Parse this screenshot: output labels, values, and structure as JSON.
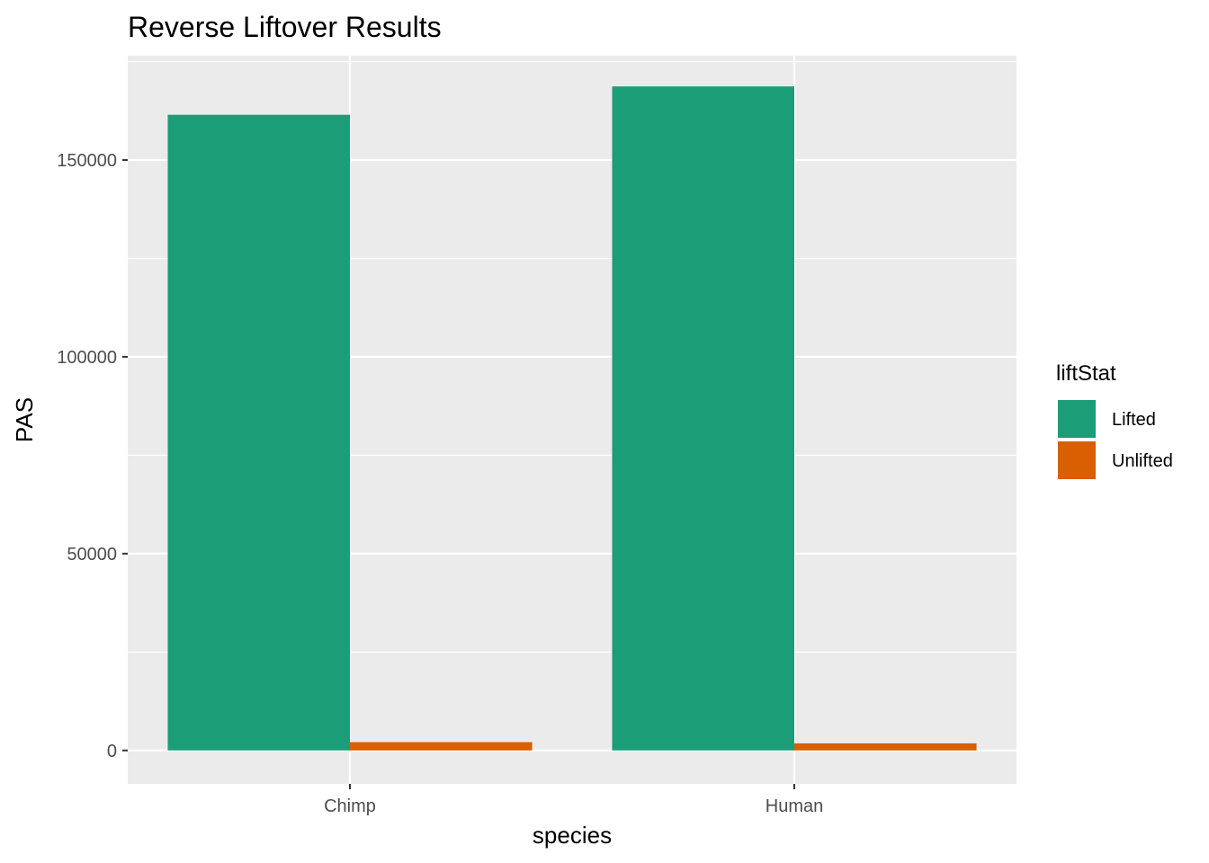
{
  "chart_data": {
    "type": "bar",
    "title": "Reverse Liftover Results",
    "xlabel": "species",
    "ylabel": "PAS",
    "categories": [
      "Chimp",
      "Human"
    ],
    "series": [
      {
        "name": "Lifted",
        "color": "#1b9e77",
        "values": [
          161500,
          168700
        ]
      },
      {
        "name": "Unlifted",
        "color": "#d95f02",
        "values": [
          2100,
          1800
        ]
      }
    ],
    "legend": {
      "title": "liftStat",
      "placement": "right"
    },
    "ylim": [
      -8500,
      176500
    ],
    "yticks": [
      0,
      50000,
      100000,
      150000
    ],
    "ytick_labels": [
      "0",
      "50000",
      "100000",
      "150000"
    ],
    "grid": true,
    "panel_color": "#ebebeb",
    "grid_color": "#ffffff"
  }
}
